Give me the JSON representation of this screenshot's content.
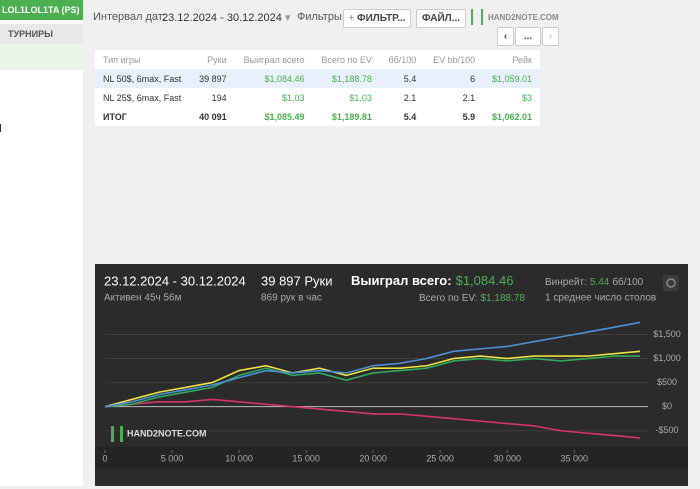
{
  "sidebar": {
    "account": "LOL1LOL1TA (PS)",
    "section": "ТУРНИРЫ"
  },
  "toolbar": {
    "date_label": "Интервал дат:",
    "date_range": "23.12.2024 - 30.12.2024",
    "filters_label": "Фильтры:",
    "filter_button": "ФИЛЬТР...",
    "file_button": "ФАЙЛ...",
    "logo": "HAND2NOTE.COM",
    "page_button": "..."
  },
  "table": {
    "columns": [
      "Тип игры",
      "Руки",
      "Выиграл всего",
      "Всего по EV",
      "бб/100",
      "EV bb/100",
      "Рейк"
    ],
    "rows": [
      [
        "NL 50$, 6max, Fast",
        "39 897",
        "$1,084.46",
        "$1,188.78",
        "5.4",
        "6",
        "$1,059.01"
      ],
      [
        "NL 25$, 6max, Fast",
        "194",
        "$1.03",
        "$1.03",
        "2.1",
        "2.1",
        "$3"
      ],
      [
        "ИТОГ",
        "40 091",
        "$1,085.49",
        "$1,189.81",
        "5.4",
        "5.9",
        "$1,062.01"
      ]
    ]
  },
  "graph": {
    "date_range": "23.12.2024 - 30.12.2024",
    "active": "Активен 45ч 56м",
    "hands": "39 897 Руки",
    "hands_per_hour": "869 рук в час",
    "won_label": "Выиграл всего:",
    "won_value": "$1,084.46",
    "ev_label": "Всего по EV:",
    "ev_value": "$1,188.78",
    "winrate_label": "Винрейт:",
    "winrate_value": "5.44",
    "winrate_unit": "бб/100",
    "tables": "1 среднее число столов",
    "logo": "HAND2NOTE.COM",
    "xlim": [
      0,
      40500
    ],
    "ylim": [
      -900,
      1800
    ],
    "xticks": [
      0,
      {
        "value": 5000,
        "label": "5 000"
      },
      {
        "value": 10000,
        "label": "10 000"
      },
      {
        "value": 15000,
        "label": "15 000"
      },
      {
        "value": 20000,
        "label": "20 000"
      },
      {
        "value": 25000,
        "label": "25 000"
      },
      {
        "value": 30000,
        "label": "30 000"
      },
      {
        "value": 35000,
        "label": "35 000"
      }
    ],
    "yticks": [
      {
        "value": 1500,
        "label": "$1,500"
      },
      {
        "value": 1000,
        "label": "$1,000"
      },
      {
        "value": 500,
        "label": "$500"
      },
      {
        "value": 0,
        "label": "$0"
      },
      {
        "value": -500,
        "label": "-$500"
      }
    ],
    "x": [
      0,
      2000,
      4000,
      6000,
      8000,
      10000,
      12000,
      14000,
      16000,
      18000,
      20000,
      22000,
      24000,
      26000,
      28000,
      30000,
      32000,
      34000,
      36000,
      38000,
      39897
    ],
    "series": [
      {
        "color": "#d6336c",
        "values": [
          0,
          50,
          100,
          100,
          150,
          100,
          50,
          0,
          -50,
          -100,
          -150,
          -150,
          -200,
          -250,
          -300,
          -350,
          -400,
          -500,
          -550,
          -600,
          -650
        ]
      },
      {
        "color": "#2eaa5c",
        "values": [
          0,
          50,
          200,
          300,
          400,
          650,
          800,
          650,
          700,
          550,
          700,
          750,
          800,
          950,
          1000,
          950,
          1000,
          950,
          1000,
          1050,
          1050
        ]
      },
      {
        "color": "#f0e040",
        "values": [
          0,
          150,
          300,
          400,
          500,
          750,
          850,
          700,
          800,
          650,
          800,
          800,
          850,
          1000,
          1050,
          1000,
          1050,
          1050,
          1050,
          1100,
          1150
        ]
      },
      {
        "color": "#4a90d9",
        "values": [
          0,
          100,
          250,
          350,
          450,
          600,
          750,
          700,
          750,
          700,
          850,
          900,
          1000,
          1150,
          1200,
          1250,
          1350,
          1450,
          1550,
          1650,
          1750
        ]
      }
    ]
  }
}
